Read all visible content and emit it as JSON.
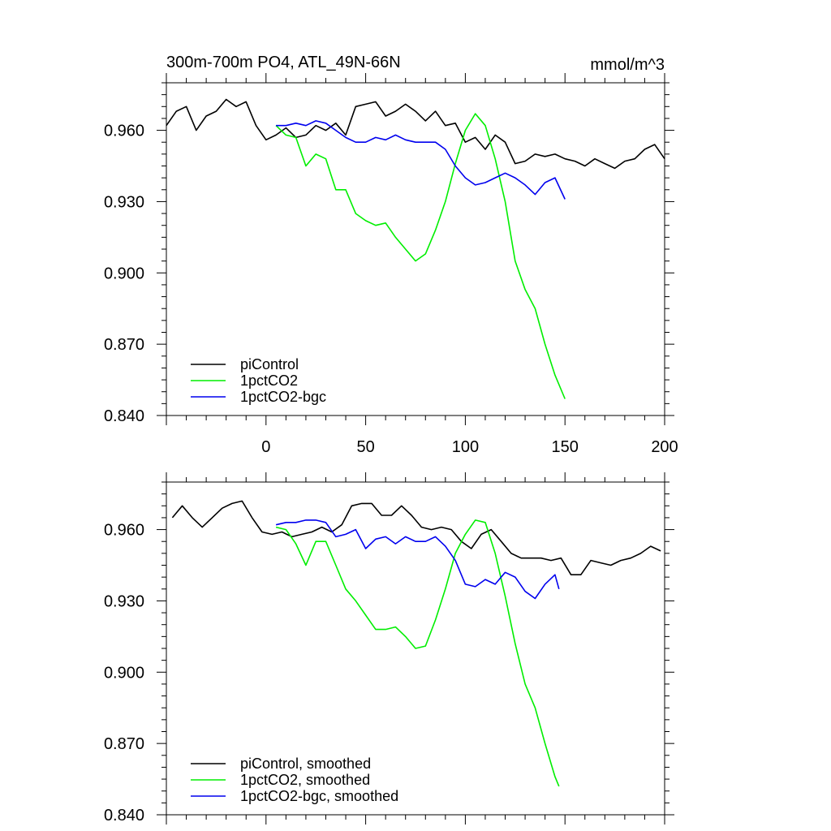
{
  "chart_data": [
    {
      "type": "line",
      "title": "300m-700m PO4, ATL_49N-66N",
      "units": "mmol/m^3",
      "xlim": [
        -50,
        200
      ],
      "ylim": [
        0.84,
        0.98
      ],
      "x_ticks": [
        0,
        50,
        100,
        150,
        200
      ],
      "y_ticks": [
        0.84,
        0.87,
        0.9,
        0.93,
        0.96
      ],
      "y_tick_labels": [
        "0.840",
        "0.870",
        "0.900",
        "0.930",
        "0.960"
      ],
      "grid": false,
      "legend_position": "bottom-left",
      "series": [
        {
          "name": "piControl",
          "color": "#000000",
          "x": [
            -50,
            -45,
            -40,
            -35,
            -30,
            -25,
            -20,
            -15,
            -10,
            -5,
            0,
            5,
            10,
            15,
            20,
            25,
            30,
            35,
            40,
            45,
            50,
            55,
            60,
            65,
            70,
            75,
            80,
            85,
            90,
            95,
            100,
            105,
            110,
            115,
            120,
            125,
            130,
            135,
            140,
            145,
            150,
            155,
            160,
            165,
            170,
            175,
            180,
            185,
            190,
            195,
            200
          ],
          "y": [
            0.962,
            0.968,
            0.97,
            0.96,
            0.966,
            0.968,
            0.973,
            0.97,
            0.972,
            0.962,
            0.956,
            0.958,
            0.961,
            0.957,
            0.958,
            0.962,
            0.96,
            0.963,
            0.958,
            0.97,
            0.971,
            0.972,
            0.966,
            0.968,
            0.971,
            0.968,
            0.964,
            0.968,
            0.962,
            0.963,
            0.955,
            0.957,
            0.952,
            0.958,
            0.955,
            0.946,
            0.947,
            0.95,
            0.949,
            0.95,
            0.948,
            0.947,
            0.945,
            0.948,
            0.946,
            0.944,
            0.947,
            0.948,
            0.952,
            0.954,
            0.948
          ]
        },
        {
          "name": "1pctCO2",
          "color": "#00ee00",
          "x": [
            5,
            10,
            15,
            20,
            25,
            30,
            35,
            40,
            45,
            50,
            55,
            60,
            65,
            70,
            75,
            80,
            85,
            90,
            95,
            100,
            105,
            110,
            115,
            120,
            125,
            130,
            135,
            140,
            145,
            150
          ],
          "y": [
            0.962,
            0.958,
            0.957,
            0.945,
            0.95,
            0.948,
            0.935,
            0.935,
            0.925,
            0.922,
            0.92,
            0.921,
            0.915,
            0.91,
            0.905,
            0.908,
            0.918,
            0.93,
            0.946,
            0.96,
            0.967,
            0.962,
            0.948,
            0.93,
            0.905,
            0.893,
            0.885,
            0.87,
            0.857,
            0.847
          ]
        },
        {
          "name": "1pctCO2-bgc",
          "color": "#0000ee",
          "x": [
            5,
            10,
            15,
            20,
            25,
            30,
            35,
            40,
            45,
            50,
            55,
            60,
            65,
            70,
            75,
            80,
            85,
            90,
            95,
            100,
            105,
            110,
            115,
            120,
            125,
            130,
            135,
            140,
            145,
            150
          ],
          "y": [
            0.962,
            0.962,
            0.963,
            0.962,
            0.964,
            0.963,
            0.96,
            0.957,
            0.955,
            0.955,
            0.957,
            0.956,
            0.958,
            0.956,
            0.955,
            0.955,
            0.955,
            0.952,
            0.945,
            0.94,
            0.937,
            0.938,
            0.94,
            0.942,
            0.94,
            0.937,
            0.933,
            0.938,
            0.94,
            0.931
          ]
        }
      ]
    },
    {
      "type": "line",
      "title": "",
      "xlim": [
        -50,
        200
      ],
      "ylim": [
        0.84,
        0.98
      ],
      "x_ticks": [
        0,
        50,
        100,
        150,
        200
      ],
      "y_ticks": [
        0.84,
        0.87,
        0.9,
        0.93,
        0.96
      ],
      "y_tick_labels": [
        "0.840",
        "0.870",
        "0.900",
        "0.930",
        "0.960"
      ],
      "grid": false,
      "legend_position": "bottom-left",
      "series": [
        {
          "name": "piControl, smoothed",
          "color": "#000000",
          "x": [
            -47,
            -42,
            -37,
            -32,
            -27,
            -22,
            -17,
            -12,
            -7,
            -2,
            3,
            8,
            13,
            18,
            23,
            28,
            33,
            38,
            43,
            48,
            53,
            58,
            63,
            68,
            73,
            78,
            83,
            88,
            93,
            98,
            103,
            108,
            113,
            118,
            123,
            128,
            133,
            138,
            143,
            148,
            153,
            158,
            163,
            168,
            173,
            178,
            183,
            188,
            193,
            198
          ],
          "y": [
            0.965,
            0.97,
            0.965,
            0.961,
            0.965,
            0.969,
            0.971,
            0.972,
            0.965,
            0.959,
            0.958,
            0.959,
            0.957,
            0.958,
            0.959,
            0.961,
            0.959,
            0.962,
            0.97,
            0.971,
            0.971,
            0.966,
            0.966,
            0.97,
            0.966,
            0.961,
            0.96,
            0.961,
            0.96,
            0.955,
            0.952,
            0.958,
            0.96,
            0.955,
            0.95,
            0.948,
            0.948,
            0.948,
            0.947,
            0.948,
            0.941,
            0.941,
            0.947,
            0.946,
            0.945,
            0.947,
            0.948,
            0.95,
            0.953,
            0.951
          ]
        },
        {
          "name": "1pctCO2, smoothed",
          "color": "#00ee00",
          "x": [
            5,
            10,
            15,
            20,
            25,
            30,
            35,
            40,
            45,
            50,
            55,
            60,
            65,
            70,
            75,
            80,
            85,
            90,
            95,
            100,
            105,
            110,
            115,
            120,
            125,
            130,
            135,
            140,
            145,
            147
          ],
          "y": [
            0.961,
            0.96,
            0.954,
            0.945,
            0.955,
            0.955,
            0.945,
            0.935,
            0.93,
            0.924,
            0.918,
            0.918,
            0.919,
            0.915,
            0.91,
            0.911,
            0.922,
            0.935,
            0.95,
            0.958,
            0.964,
            0.963,
            0.95,
            0.932,
            0.912,
            0.895,
            0.885,
            0.87,
            0.856,
            0.852
          ]
        },
        {
          "name": "1pctCO2-bgc, smoothed",
          "color": "#0000ee",
          "x": [
            5,
            10,
            15,
            20,
            25,
            30,
            35,
            40,
            45,
            50,
            55,
            60,
            65,
            70,
            75,
            80,
            85,
            90,
            95,
            100,
            105,
            110,
            115,
            120,
            125,
            130,
            135,
            140,
            145,
            147
          ],
          "y": [
            0.962,
            0.963,
            0.963,
            0.964,
            0.964,
            0.963,
            0.957,
            0.958,
            0.96,
            0.952,
            0.956,
            0.957,
            0.954,
            0.957,
            0.955,
            0.955,
            0.957,
            0.953,
            0.947,
            0.937,
            0.936,
            0.939,
            0.937,
            0.942,
            0.94,
            0.934,
            0.931,
            0.937,
            0.941,
            0.935
          ]
        }
      ]
    }
  ]
}
